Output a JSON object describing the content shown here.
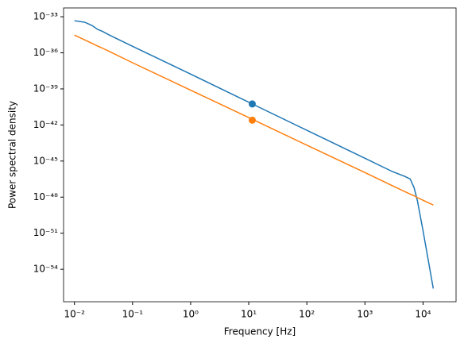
{
  "chart_data": {
    "type": "line",
    "xlabel": "Frequency [Hz]",
    "ylabel": "Power spectral density",
    "xlog": true,
    "ylog": true,
    "x": [
      0.01,
      0.015,
      0.02,
      0.025,
      0.03,
      0.04,
      0.1,
      1,
      10,
      100,
      1000,
      3000,
      5000,
      6000,
      7000,
      8000,
      10000,
      15000
    ],
    "series": [
      {
        "color": "#1f77b4",
        "values": [
          4.7e-34,
          3.5e-34,
          1.9e-34,
          8.9e-35,
          6.3e-35,
          3e-35,
          3.5e-36,
          1.7e-38,
          7.8e-41,
          3.6e-43,
          1.7e-45,
          1.3e-46,
          5e-47,
          3.2e-47,
          6.3e-48,
          5e-49,
          1.6e-51,
          2.5e-56
        ]
      },
      {
        "color": "#ff7f0e",
        "values": [
          3e-35,
          1.2e-35,
          6.2e-36,
          3.7e-36,
          2.5e-36,
          1.3e-36,
          1.5e-37,
          7.9e-40,
          4.1e-42,
          2.1e-44,
          1.1e-46,
          8.7e-48,
          2.7e-48,
          1.8e-48,
          1.3e-48,
          9.1e-49,
          5.5e-49,
          2.2e-49
        ]
      }
    ],
    "markers": [
      {
        "x": 11.5,
        "y": 5.6e-41,
        "color": "#1f77b4"
      },
      {
        "x": 11.5,
        "y": 2.5e-42,
        "color": "#ff7f0e"
      }
    ],
    "xlim": [
      0.0065,
      37000
    ],
    "ylim": [
      2e-57,
      5.4e-33
    ],
    "xticks": [
      {
        "value": 0.01,
        "label": "10⁻²"
      },
      {
        "value": 0.1,
        "label": "10⁻¹"
      },
      {
        "value": 1,
        "label": "10⁰"
      },
      {
        "value": 10,
        "label": "10¹"
      },
      {
        "value": 100,
        "label": "10²"
      },
      {
        "value": 1000,
        "label": "10³"
      },
      {
        "value": 10000,
        "label": "10⁴"
      }
    ],
    "yticks": [
      {
        "value": 1e-33,
        "label": "10⁻³³"
      },
      {
        "value": 1e-36,
        "label": "10⁻³⁶"
      },
      {
        "value": 1e-39,
        "label": "10⁻³⁹"
      },
      {
        "value": 1e-42,
        "label": "10⁻⁴²"
      },
      {
        "value": 1e-45,
        "label": "10⁻⁴⁵"
      },
      {
        "value": 1e-48,
        "label": "10⁻⁴⁸"
      },
      {
        "value": 1e-51,
        "label": "10⁻⁵¹"
      },
      {
        "value": 1e-54,
        "label": "10⁻⁵⁴"
      }
    ]
  }
}
